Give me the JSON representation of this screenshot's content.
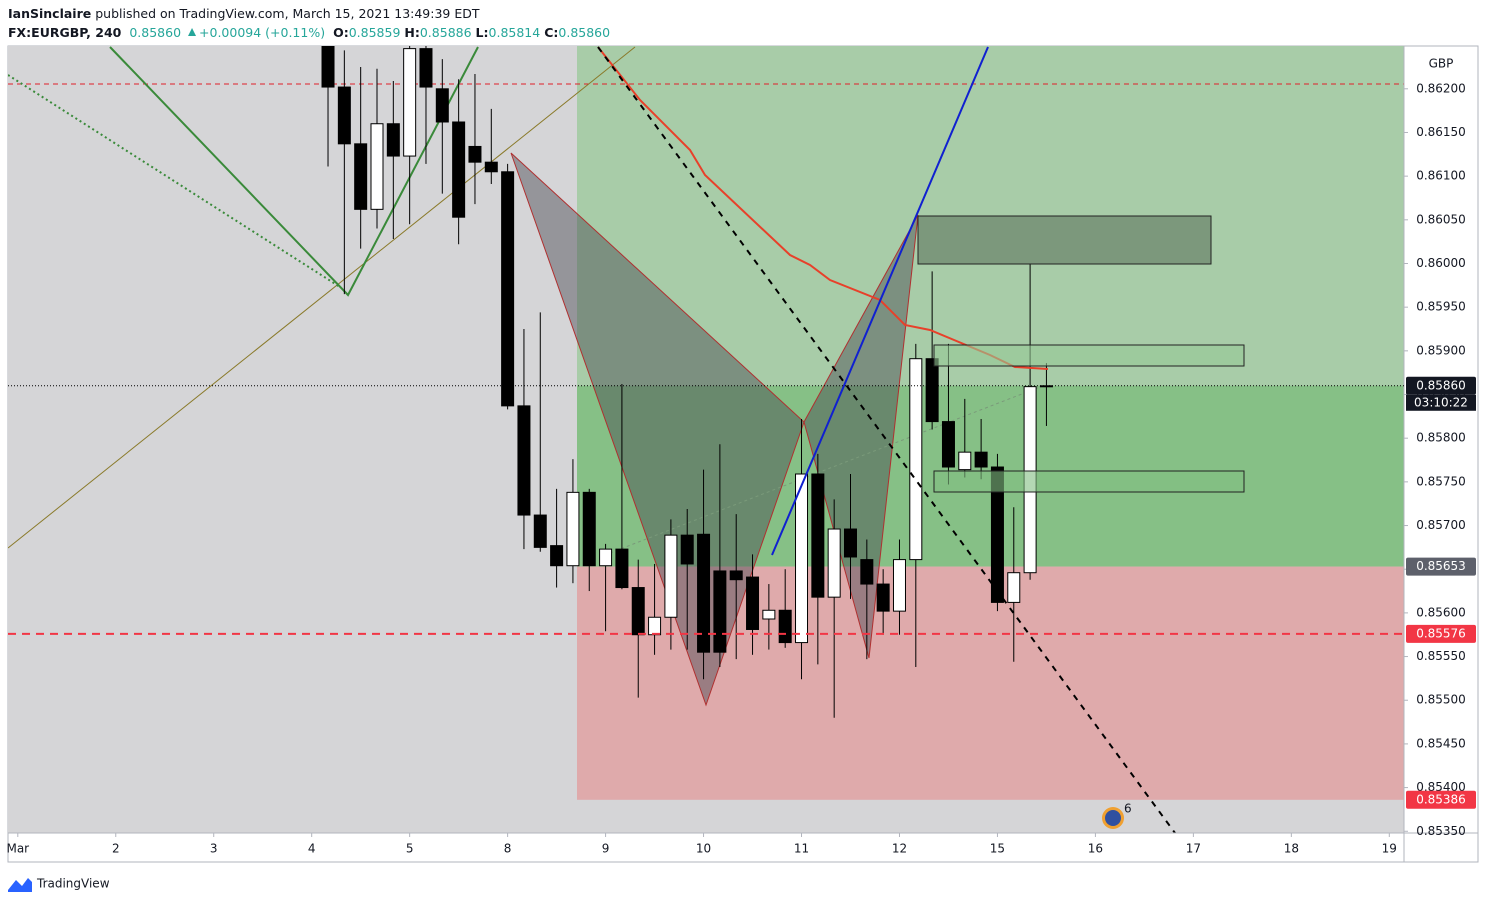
{
  "header": {
    "publisher": "IanSinclaire",
    "published": "published on TradingView.com, March 15, 2021 13:49:39 EDT",
    "symbol": "FX:EURGBP, 240",
    "last": "0.85860",
    "change": "+0.00094 (+0.11%)",
    "ohlc": [
      {
        "label": "O:",
        "value": "0.85859"
      },
      {
        "label": "H:",
        "value": "0.85886"
      },
      {
        "label": "L:",
        "value": "0.85814"
      },
      {
        "label": "C:",
        "value": "0.85860"
      }
    ]
  },
  "footer": {
    "brand": "TradingView"
  },
  "badge": "6",
  "chart_data": {
    "type": "candlestick",
    "currency": "GBP",
    "x": [
      19,
      20,
      21,
      22,
      23,
      24,
      25,
      26,
      27,
      28,
      29,
      30,
      31,
      32,
      33,
      34,
      35,
      36,
      37,
      38,
      39,
      40,
      41,
      42,
      43,
      44,
      45,
      46,
      47,
      48,
      49,
      50,
      51,
      52,
      53,
      54,
      55,
      56,
      57,
      58,
      59,
      60,
      61,
      62,
      63
    ],
    "open": [
      0.86265,
      0.86202,
      0.86137,
      0.86062,
      0.8616,
      0.86123,
      0.86246,
      0.862,
      0.86162,
      0.86134,
      0.86116,
      0.86105,
      0.85837,
      0.85712,
      0.85677,
      0.85654,
      0.85738,
      0.85654,
      0.85673,
      0.85629,
      0.85575,
      0.85595,
      0.85689,
      0.8569,
      0.85648,
      0.85648,
      0.85641,
      0.85593,
      0.85603,
      0.85566,
      0.85759,
      0.85618,
      0.85696,
      0.85661,
      0.85633,
      0.85602,
      0.85661,
      0.85891,
      0.85819,
      0.85764,
      0.85784,
      0.85767,
      0.85612,
      0.85646,
      0.85859
    ],
    "high": [
      0.8628,
      0.86244,
      0.86225,
      0.86223,
      0.86209,
      0.86257,
      0.86257,
      0.86234,
      0.86211,
      0.86217,
      0.86177,
      0.86114,
      0.85925,
      0.85944,
      0.85742,
      0.85776,
      0.85742,
      0.85679,
      0.85862,
      0.85661,
      0.85656,
      0.85707,
      0.85719,
      0.85764,
      0.85793,
      0.85713,
      0.85667,
      0.85633,
      0.8565,
      0.85822,
      0.85782,
      0.8573,
      0.85759,
      0.85684,
      0.8565,
      0.85684,
      0.85908,
      0.85991,
      0.85908,
      0.85845,
      0.85822,
      0.85782,
      0.85721,
      0.85999,
      0.85886
    ],
    "low": [
      0.86111,
      0.85965,
      0.86017,
      0.8604,
      0.86028,
      0.86045,
      0.86114,
      0.8608,
      0.86022,
      0.86068,
      0.86091,
      0.85833,
      0.85673,
      0.8567,
      0.85629,
      0.85634,
      0.85625,
      0.85579,
      0.85627,
      0.85503,
      0.85552,
      0.85558,
      0.85558,
      0.85524,
      0.85538,
      0.85547,
      0.85552,
      0.85558,
      0.8556,
      0.85524,
      0.85541,
      0.8548,
      0.85616,
      0.85547,
      0.85575,
      0.85575,
      0.85538,
      0.8581,
      0.85747,
      0.85755,
      0.85753,
      0.85602,
      0.85544,
      0.85638,
      0.85814
    ],
    "close": [
      0.86202,
      0.86137,
      0.86062,
      0.8616,
      0.86123,
      0.86246,
      0.86202,
      0.86162,
      0.86053,
      0.86116,
      0.86105,
      0.85837,
      0.85712,
      0.85675,
      0.85654,
      0.85738,
      0.85654,
      0.85673,
      0.85629,
      0.85575,
      0.85595,
      0.85689,
      0.85656,
      0.85555,
      0.85555,
      0.85638,
      0.85581,
      0.85603,
      0.85566,
      0.85759,
      0.85618,
      0.85696,
      0.85664,
      0.85633,
      0.85602,
      0.85661,
      0.85891,
      0.85819,
      0.85767,
      0.85784,
      0.85767,
      0.85612,
      0.85646,
      0.85859,
      0.8586
    ],
    "up_color": "#ffffff",
    "down_color": "#000000",
    "xlim": [
      -0.6,
      84.9
    ],
    "xticks": [
      {
        "value": 0,
        "label": "Mar"
      },
      {
        "value": 6,
        "label": "2"
      },
      {
        "value": 12,
        "label": "3"
      },
      {
        "value": 18,
        "label": "4"
      },
      {
        "value": 24,
        "label": "5"
      },
      {
        "value": 30,
        "label": "8"
      },
      {
        "value": 36,
        "label": "9"
      },
      {
        "value": 42,
        "label": "10"
      },
      {
        "value": 48,
        "label": "11"
      },
      {
        "value": 54,
        "label": "12"
      },
      {
        "value": 60,
        "label": "15"
      },
      {
        "value": 66,
        "label": "16"
      },
      {
        "value": 72,
        "label": "17"
      },
      {
        "value": 78,
        "label": "18"
      },
      {
        "value": 84,
        "label": "19"
      }
    ],
    "ylim": [
      0.85348,
      0.86249
    ],
    "yticks": [
      {
        "value": 0.8535,
        "label": "0.85350"
      },
      {
        "value": 0.854,
        "label": "0.85400"
      },
      {
        "value": 0.8545,
        "label": "0.85450"
      },
      {
        "value": 0.855,
        "label": "0.85500"
      },
      {
        "value": 0.8555,
        "label": "0.85550"
      },
      {
        "value": 0.856,
        "label": "0.85600"
      },
      {
        "value": 0.8565,
        "label": "0.85650"
      },
      {
        "value": 0.857,
        "label": "0.85700"
      },
      {
        "value": 0.8575,
        "label": "0.85750"
      },
      {
        "value": 0.858,
        "label": "0.85800"
      },
      {
        "value": 0.8585,
        "label": "0.85850"
      },
      {
        "value": 0.859,
        "label": "0.85900"
      },
      {
        "value": 0.8595,
        "label": "0.85950"
      },
      {
        "value": 0.86,
        "label": "0.86000"
      },
      {
        "value": 0.8605,
        "label": "0.86050"
      },
      {
        "value": 0.861,
        "label": "0.86100"
      },
      {
        "value": 0.8615,
        "label": "0.86150"
      },
      {
        "value": 0.862,
        "label": "0.86200"
      }
    ],
    "price_markers": [
      {
        "value": 0.8586,
        "label": "0.85860",
        "color": "#131722",
        "line": "dotted",
        "countdown": "03:10:22"
      },
      {
        "value": 0.85653,
        "label": "0.85653",
        "color": "#5d606b"
      },
      {
        "value": 0.85576,
        "label": "0.85576",
        "color": "#f23645",
        "line": "dashed"
      },
      {
        "value": 0.85386,
        "label": "0.85386",
        "color": "#f23645"
      }
    ]
  }
}
